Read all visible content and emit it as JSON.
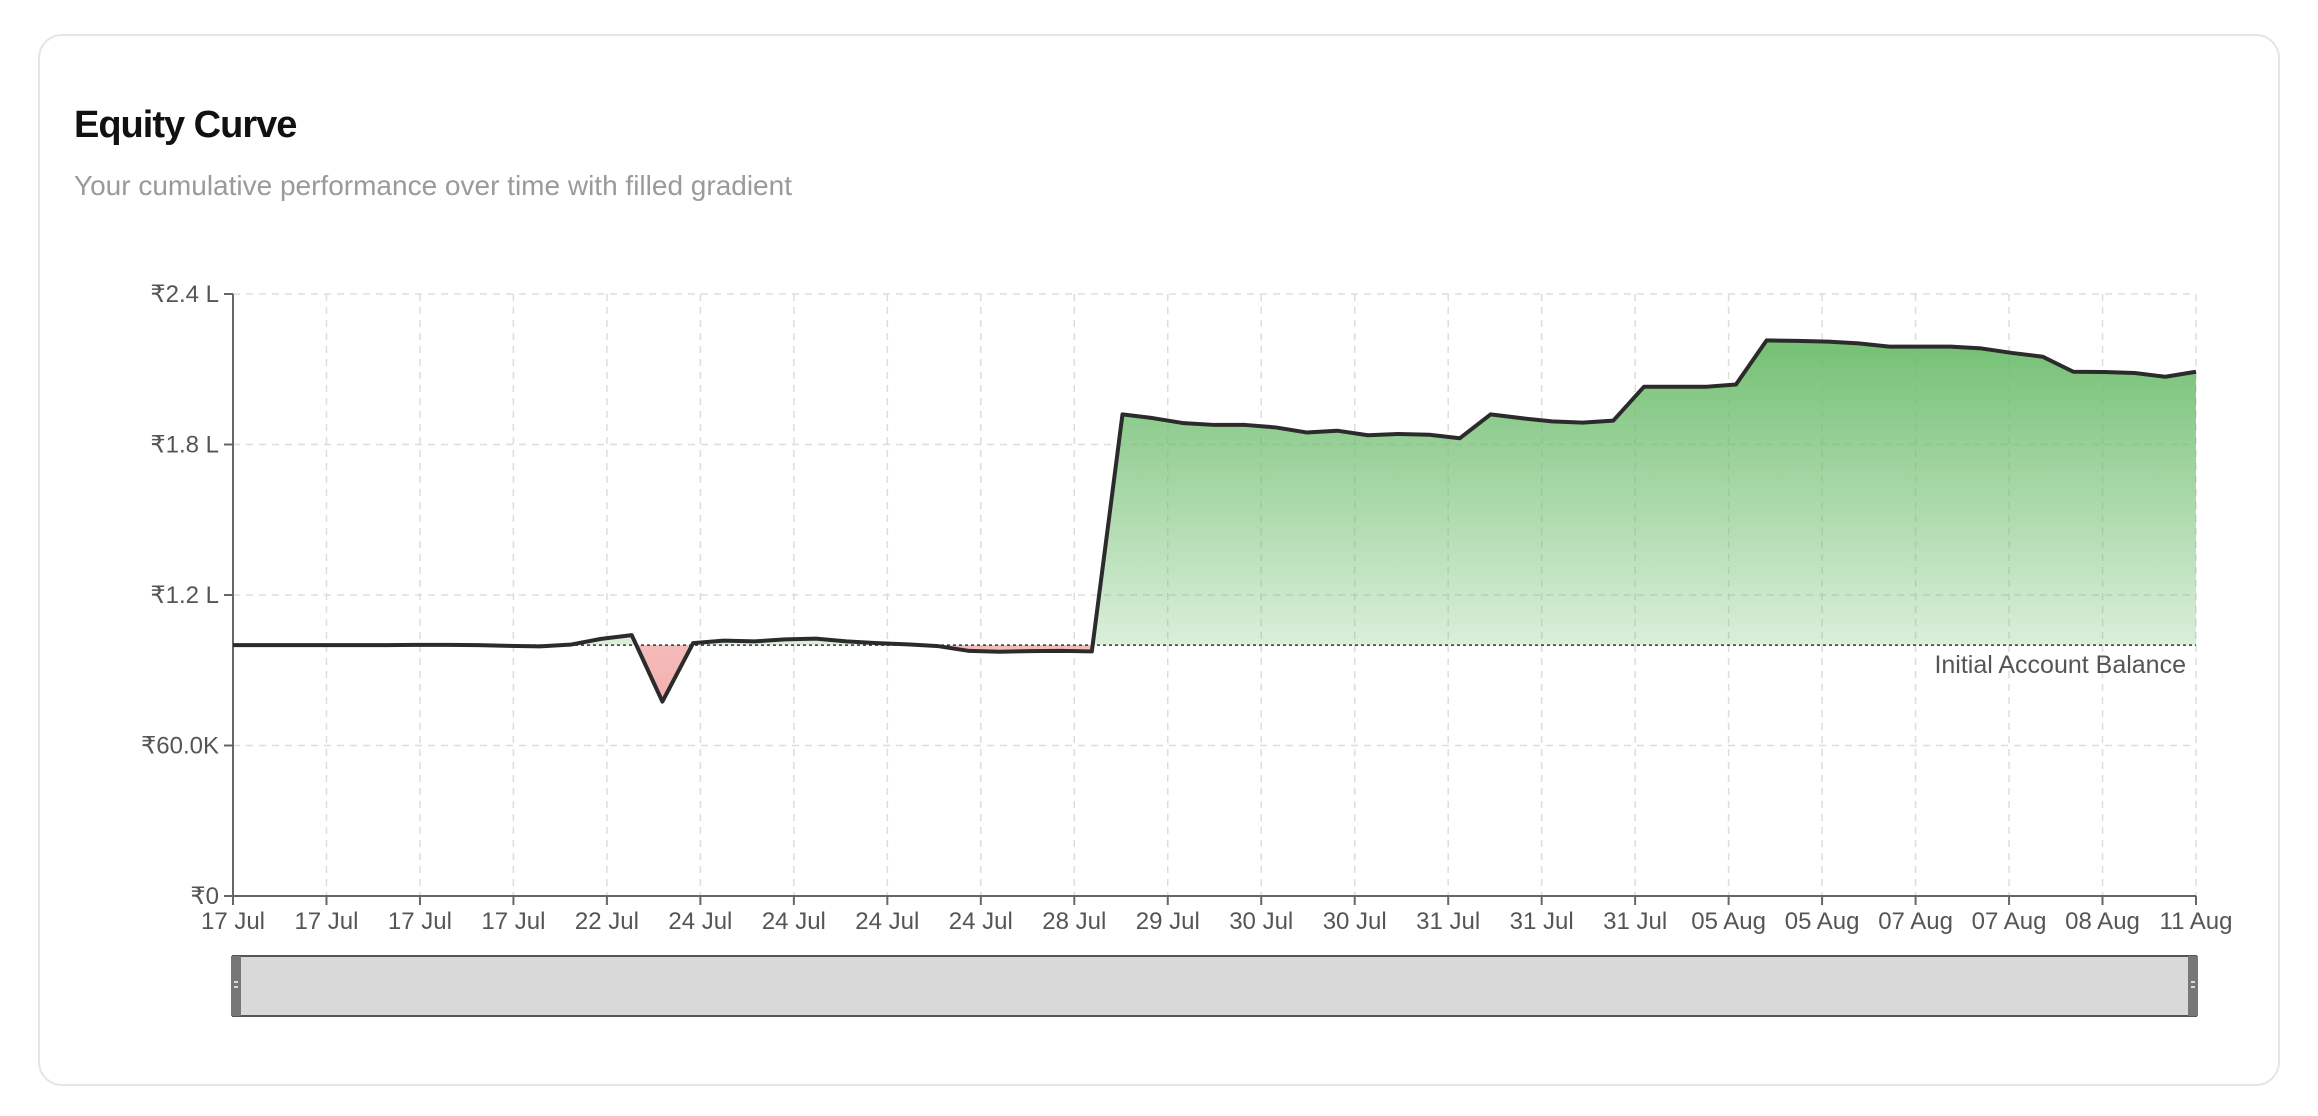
{
  "card": {
    "title": "Equity Curve",
    "subtitle": "Your cumulative performance over time with filled gradient"
  },
  "chart_data": {
    "type": "area",
    "title": "Equity Curve",
    "subtitle": "Your cumulative performance over time with filled gradient",
    "y_tick_labels": [
      "₹0",
      "₹60.0K",
      "₹1.2 L",
      "₹1.8 L",
      "₹2.4 L"
    ],
    "y_ticks": [
      0,
      60000,
      120000,
      180000,
      240000
    ],
    "ylim": [
      0,
      240000
    ],
    "x_tick_labels": [
      "17 Jul",
      "17 Jul",
      "17 Jul",
      "17 Jul",
      "22 Jul",
      "24 Jul",
      "24 Jul",
      "24 Jul",
      "24 Jul",
      "28 Jul",
      "29 Jul",
      "30 Jul",
      "30 Jul",
      "31 Jul",
      "31 Jul",
      "31 Jul",
      "05 Aug",
      "05 Aug",
      "07 Aug",
      "07 Aug",
      "08 Aug",
      "11 Aug"
    ],
    "reference_line": {
      "value": 100000,
      "label": "Initial Account Balance"
    },
    "grid": true,
    "brush": true,
    "series": [
      {
        "values": [
          100000,
          100000,
          100000,
          100000,
          100000,
          100000,
          100100,
          100100,
          100000,
          99700,
          99500,
          100200,
          102500,
          104000,
          77500,
          100800,
          101800,
          101500,
          102300,
          102600,
          101500,
          100800,
          100300,
          99600,
          97700,
          97400,
          97600,
          97700,
          97500,
          192000,
          190500,
          188500,
          187800,
          187800,
          186800,
          184800,
          185500,
          183700,
          184200,
          183900,
          182500,
          192000,
          190500,
          189200,
          188700,
          189500,
          203000,
          203000,
          203000,
          203900,
          221500,
          221300,
          221000,
          220300,
          219000,
          219000,
          219000,
          218300,
          216500,
          215000,
          209000,
          208900,
          208500,
          207000,
          209000
        ]
      }
    ],
    "colors": {
      "line": "#2b2b2b",
      "gain": "#6dbd6d",
      "loss": "#f2a8a8",
      "grid": "#dddddd",
      "axis": "#666666",
      "brush_fill": "#d9d9d9",
      "brush_handle": "#777777"
    }
  }
}
